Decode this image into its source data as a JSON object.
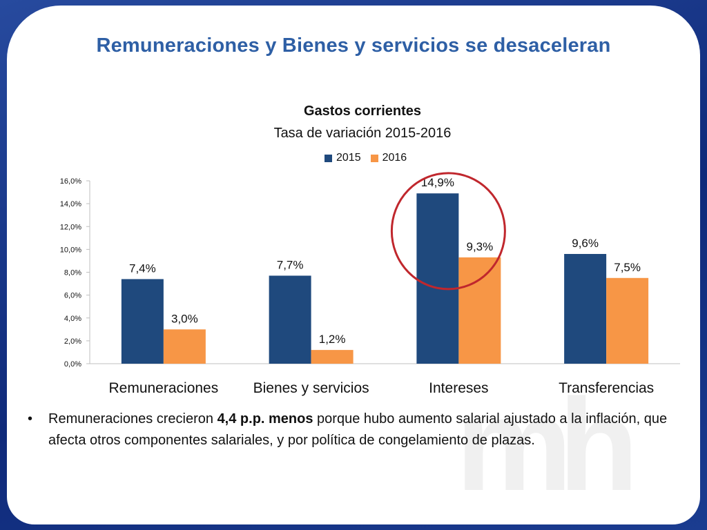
{
  "slide": {
    "title": "Remuneraciones y Bienes y servicios se desaceleran",
    "watermark": "mh",
    "bullet": {
      "symbol": "•",
      "text_before": "Remuneraciones  crecieron ",
      "text_bold": " 4,4  p.p. menos",
      "text_after": " porque hubo aumento salarial ajustado a la inflación, que afecta otros componentes salariales, y por política de congelamiento de plazas."
    }
  },
  "chart_data": {
    "type": "bar",
    "title": "Gastos corrientes",
    "subtitle": "Tasa de variación 2015-2016",
    "categories": [
      "Remuneraciones",
      "Bienes y servicios",
      "Intereses",
      "Transferencias"
    ],
    "series": [
      {
        "name": "2015",
        "color": "#1f497d",
        "values": [
          7.4,
          7.7,
          14.9,
          9.6
        ],
        "labels": [
          "7,4%",
          "7,7%",
          "14,9%",
          "9,6%"
        ]
      },
      {
        "name": "2016",
        "color": "#f79646",
        "values": [
          3.0,
          1.2,
          9.3,
          7.5
        ],
        "labels": [
          "3,0%",
          "1,2%",
          "9,3%",
          "7,5%"
        ]
      }
    ],
    "ylim": [
      0,
      16
    ],
    "yticks": [
      0,
      2,
      4,
      6,
      8,
      10,
      12,
      14,
      16
    ],
    "ytick_labels": [
      "0,0%",
      "2,0%",
      "4,0%",
      "6,0%",
      "8,0%",
      "10,0%",
      "12,0%",
      "14,0%",
      "16,0%"
    ],
    "legend_position": "top",
    "highlight": {
      "category": "Intereses",
      "shape": "circle",
      "color": "#c0272d"
    },
    "grid": false
  }
}
